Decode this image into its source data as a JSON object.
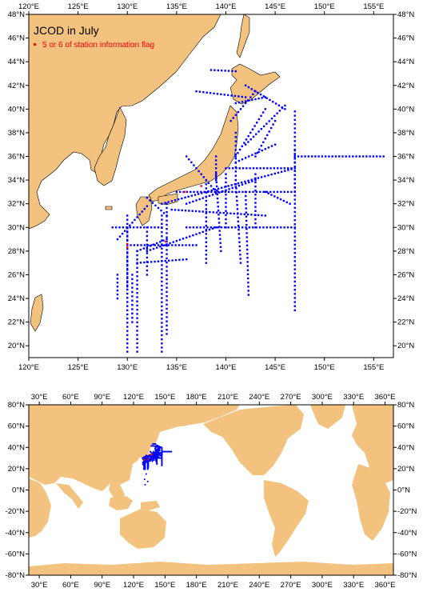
{
  "colors": {
    "land": "#f2c27e",
    "ocean": "#ffffff",
    "station": "#0000ff",
    "flag": "#ff0000",
    "frame": "#000000"
  },
  "top_map": {
    "title": "JCOD in July",
    "legend_label": "5 or 6 of station information flag",
    "lon_range": [
      120,
      157
    ],
    "lat_range": [
      19,
      48
    ],
    "lon_ticks": [
      {
        "value": 120,
        "label": "120°E"
      },
      {
        "value": 125,
        "label": "125°E"
      },
      {
        "value": 130,
        "label": "130°E"
      },
      {
        "value": 135,
        "label": "135°E"
      },
      {
        "value": 140,
        "label": "140°E"
      },
      {
        "value": 145,
        "label": "145°E"
      },
      {
        "value": 150,
        "label": "150°E"
      },
      {
        "value": 155,
        "label": "155°E"
      }
    ],
    "lat_ticks": [
      {
        "value": 20,
        "label": "20°N"
      },
      {
        "value": 22,
        "label": "22°N"
      },
      {
        "value": 24,
        "label": "24°N"
      },
      {
        "value": 26,
        "label": "26°N"
      },
      {
        "value": 28,
        "label": "28°N"
      },
      {
        "value": 30,
        "label": "30°N"
      },
      {
        "value": 32,
        "label": "32°N"
      },
      {
        "value": 34,
        "label": "34°N"
      },
      {
        "value": 36,
        "label": "36°N"
      },
      {
        "value": 38,
        "label": "38°N"
      },
      {
        "value": 40,
        "label": "40°N"
      },
      {
        "value": 42,
        "label": "42°N"
      },
      {
        "value": 44,
        "label": "44°N"
      },
      {
        "value": 46,
        "label": "46°N"
      },
      {
        "value": 48,
        "label": "48°N"
      }
    ]
  },
  "world_map": {
    "lon_range": [
      20,
      368
    ],
    "lat_range": [
      -80,
      80
    ],
    "lon_ticks": [
      {
        "value": 30,
        "label": "30°E"
      },
      {
        "value": 60,
        "label": "60°E"
      },
      {
        "value": 90,
        "label": "90°E"
      },
      {
        "value": 120,
        "label": "120°E"
      },
      {
        "value": 150,
        "label": "150°E"
      },
      {
        "value": 180,
        "label": "180°E"
      },
      {
        "value": 210,
        "label": "210°E"
      },
      {
        "value": 240,
        "label": "240°E"
      },
      {
        "value": 270,
        "label": "270°E"
      },
      {
        "value": 300,
        "label": "300°E"
      },
      {
        "value": 330,
        "label": "330°E"
      },
      {
        "value": 360,
        "label": "360°E"
      }
    ],
    "lat_ticks": [
      {
        "value": 80,
        "label": "80°N"
      },
      {
        "value": 60,
        "label": "60°N"
      },
      {
        "value": 40,
        "label": "40°N"
      },
      {
        "value": 20,
        "label": "20°N"
      },
      {
        "value": 0,
        "label": "0°N"
      },
      {
        "value": -20,
        "label": "-20°N"
      },
      {
        "value": -40,
        "label": "-40°N"
      },
      {
        "value": -60,
        "label": "-60°N"
      },
      {
        "value": -80,
        "label": "-80°N"
      }
    ]
  }
}
